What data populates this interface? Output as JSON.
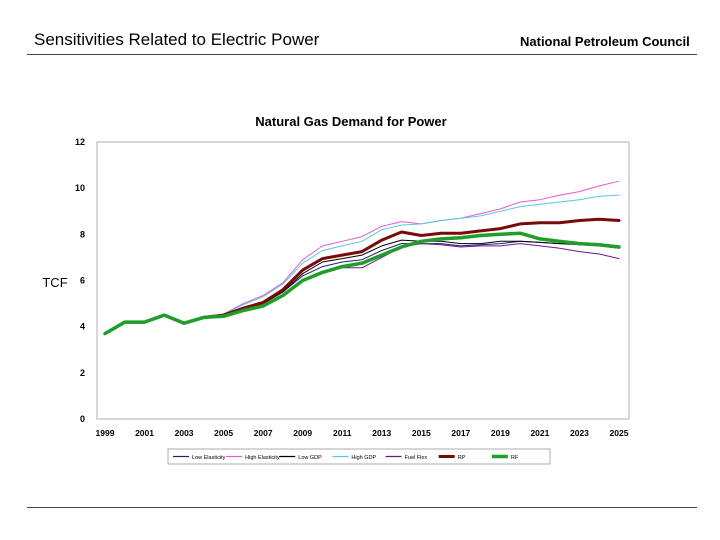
{
  "header": {
    "title": "Sensitivities Related to Electric Power",
    "organization": "National Petroleum Council"
  },
  "chart_data": {
    "type": "line",
    "title": "Natural Gas Demand for Power",
    "xlabel": "",
    "ylabel": "TCF",
    "xlim": [
      1999,
      2025
    ],
    "ylim": [
      0,
      12
    ],
    "yticks": [
      0,
      2,
      4,
      6,
      8,
      10,
      12
    ],
    "xticks": [
      1999,
      2001,
      2003,
      2005,
      2007,
      2009,
      2011,
      2013,
      2015,
      2017,
      2019,
      2021,
      2023,
      2025
    ],
    "grid": false,
    "legend": "bottom",
    "x": [
      1999,
      2000,
      2001,
      2002,
      2003,
      2004,
      2005,
      2006,
      2007,
      2008,
      2009,
      2010,
      2011,
      2012,
      2013,
      2014,
      2015,
      2016,
      2017,
      2018,
      2019,
      2020,
      2021,
      2022,
      2023,
      2024,
      2025
    ],
    "series": [
      {
        "name": "Low Elasticity",
        "color": "#1f1f7a",
        "width": 1,
        "values": [
          3.7,
          4.2,
          4.2,
          4.5,
          4.15,
          4.4,
          4.5,
          4.75,
          5.0,
          5.5,
          6.2,
          6.6,
          6.8,
          6.9,
          7.3,
          7.6,
          7.6,
          7.6,
          7.5,
          7.55,
          7.6,
          7.7,
          7.65,
          7.6,
          7.6,
          7.55,
          7.45
        ]
      },
      {
        "name": "High Elasticity",
        "color": "#e35ad6",
        "width": 1,
        "values": [
          3.7,
          4.2,
          4.2,
          4.5,
          4.15,
          4.4,
          4.55,
          5.0,
          5.35,
          5.9,
          6.9,
          7.5,
          7.7,
          7.9,
          8.35,
          8.55,
          8.45,
          8.6,
          8.7,
          8.9,
          9.1,
          9.4,
          9.5,
          9.7,
          9.85,
          10.1,
          10.3
        ]
      },
      {
        "name": "Low GDP",
        "color": "#000000",
        "width": 1,
        "values": [
          3.7,
          4.2,
          4.2,
          4.5,
          4.15,
          4.4,
          4.5,
          4.75,
          5.0,
          5.5,
          6.3,
          6.8,
          6.95,
          7.1,
          7.5,
          7.75,
          7.7,
          7.7,
          7.6,
          7.6,
          7.7,
          7.7,
          7.65,
          7.6,
          7.55,
          7.5,
          7.4
        ]
      },
      {
        "name": "High GDP",
        "color": "#5cc8d6",
        "width": 1,
        "values": [
          3.7,
          4.2,
          4.2,
          4.5,
          4.15,
          4.4,
          4.55,
          4.95,
          5.3,
          5.85,
          6.75,
          7.3,
          7.5,
          7.7,
          8.2,
          8.4,
          8.45,
          8.6,
          8.7,
          8.8,
          9.0,
          9.2,
          9.3,
          9.4,
          9.5,
          9.65,
          9.7
        ]
      },
      {
        "name": "Fuel Flex",
        "color": "#6a1a8a",
        "width": 1,
        "values": [
          3.7,
          4.2,
          4.2,
          4.5,
          4.15,
          4.4,
          4.45,
          4.7,
          4.9,
          5.35,
          6.0,
          6.35,
          6.55,
          6.55,
          7.0,
          7.45,
          7.6,
          7.55,
          7.45,
          7.5,
          7.5,
          7.6,
          7.5,
          7.4,
          7.25,
          7.15,
          6.95
        ]
      },
      {
        "name": "RP",
        "color": "#7a0a0a",
        "width": 3,
        "values": [
          3.7,
          4.2,
          4.2,
          4.5,
          4.15,
          4.4,
          4.5,
          4.8,
          5.05,
          5.6,
          6.45,
          6.95,
          7.1,
          7.25,
          7.75,
          8.1,
          7.95,
          8.05,
          8.05,
          8.15,
          8.25,
          8.45,
          8.5,
          8.5,
          8.6,
          8.65,
          8.6
        ]
      },
      {
        "name": "RF",
        "color": "#1f9e2a",
        "width": 3.5,
        "values": [
          3.7,
          4.2,
          4.2,
          4.5,
          4.15,
          4.4,
          4.45,
          4.7,
          4.9,
          5.35,
          6.0,
          6.35,
          6.6,
          6.75,
          7.1,
          7.45,
          7.7,
          7.8,
          7.85,
          7.95,
          8.0,
          8.05,
          7.8,
          7.7,
          7.6,
          7.55,
          7.45
        ]
      }
    ]
  }
}
